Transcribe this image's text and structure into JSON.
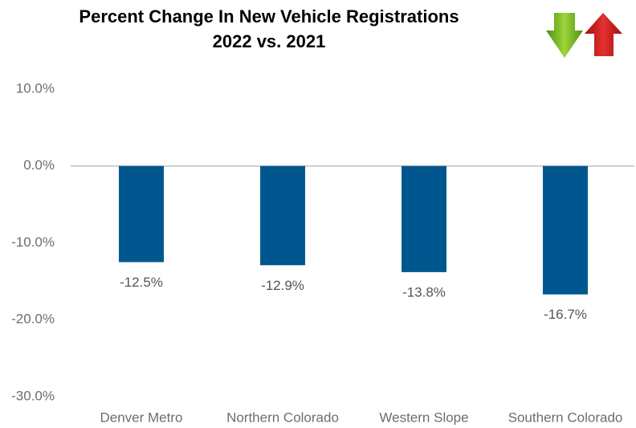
{
  "chart_data": {
    "type": "bar",
    "title": [
      "Percent Change In New Vehicle Registrations",
      "2022 vs. 2021"
    ],
    "categories": [
      "Denver Metro",
      "Northern Colorado",
      "Western Slope",
      "Southern Colorado"
    ],
    "values": [
      -12.5,
      -12.9,
      -13.8,
      -16.7
    ],
    "value_labels": [
      "-12.5%",
      "-12.9%",
      "-13.8%",
      "-16.7%"
    ],
    "color": "#00578f",
    "ylim": [
      -30,
      10
    ],
    "yticks": [
      {
        "value": 10,
        "label": "10.0%"
      },
      {
        "value": 0,
        "label": "0.0%"
      },
      {
        "value": -10,
        "label": "-10.0%"
      },
      {
        "value": -20,
        "label": "-20.0%"
      },
      {
        "value": -30,
        "label": "-30.0%"
      }
    ],
    "grid": false
  }
}
